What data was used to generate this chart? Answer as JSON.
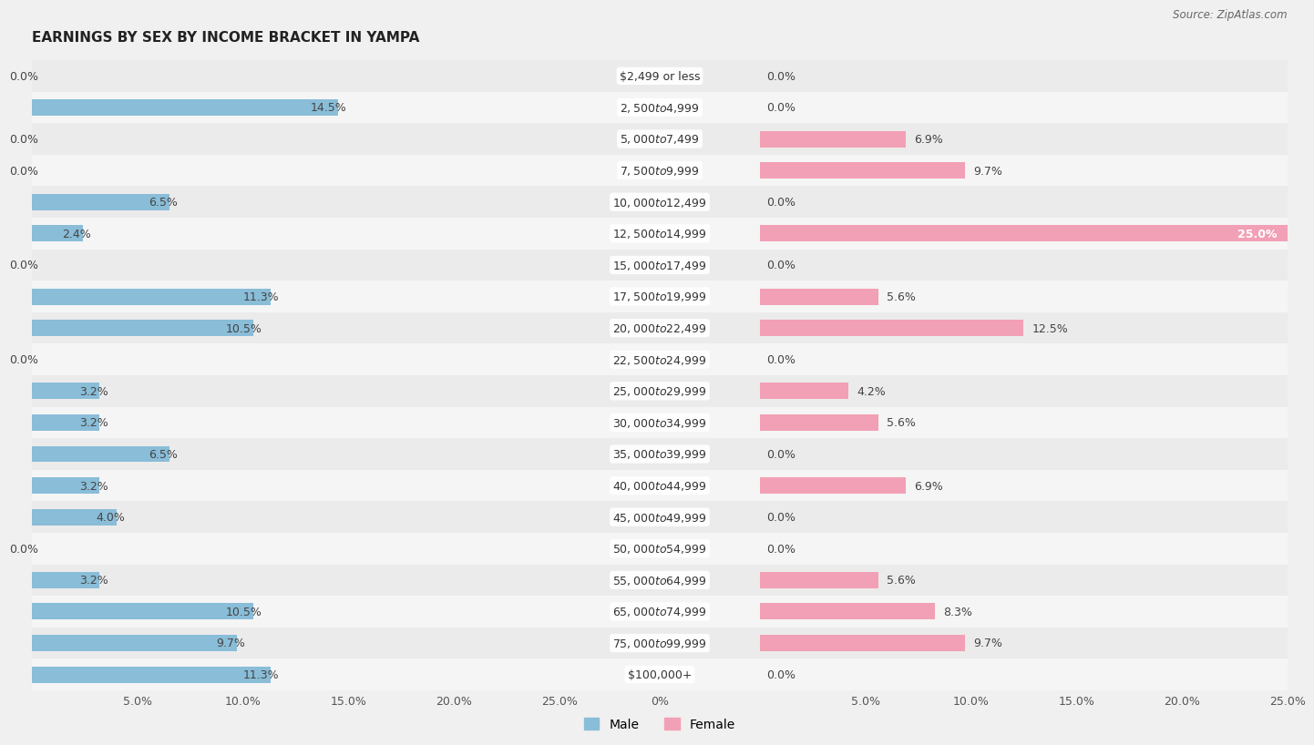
{
  "title": "EARNINGS BY SEX BY INCOME BRACKET IN YAMPA",
  "source": "Source: ZipAtlas.com",
  "categories": [
    "$2,499 or less",
    "$2,500 to $4,999",
    "$5,000 to $7,499",
    "$7,500 to $9,999",
    "$10,000 to $12,499",
    "$12,500 to $14,999",
    "$15,000 to $17,499",
    "$17,500 to $19,999",
    "$20,000 to $22,499",
    "$22,500 to $24,999",
    "$25,000 to $29,999",
    "$30,000 to $34,999",
    "$35,000 to $39,999",
    "$40,000 to $44,999",
    "$45,000 to $49,999",
    "$50,000 to $54,999",
    "$55,000 to $64,999",
    "$65,000 to $74,999",
    "$75,000 to $99,999",
    "$100,000+"
  ],
  "male": [
    0.0,
    14.5,
    0.0,
    0.0,
    6.5,
    2.4,
    0.0,
    11.3,
    10.5,
    0.0,
    3.2,
    3.2,
    6.5,
    3.2,
    4.0,
    0.0,
    3.2,
    10.5,
    9.7,
    11.3
  ],
  "female": [
    0.0,
    0.0,
    6.9,
    9.7,
    0.0,
    25.0,
    0.0,
    5.6,
    12.5,
    0.0,
    4.2,
    5.6,
    0.0,
    6.9,
    0.0,
    0.0,
    5.6,
    8.3,
    9.7,
    0.0
  ],
  "male_color": "#89bdd8",
  "female_color": "#f2a0b5",
  "bg_color": "#f0f0f0",
  "row_bg_even": "#ebebeb",
  "row_bg_odd": "#f5f5f5",
  "xlim": 25.0,
  "bar_height": 0.52,
  "title_fontsize": 11,
  "label_fontsize": 9,
  "tick_fontsize": 9,
  "cat_fontsize": 9,
  "source_fontsize": 8.5
}
